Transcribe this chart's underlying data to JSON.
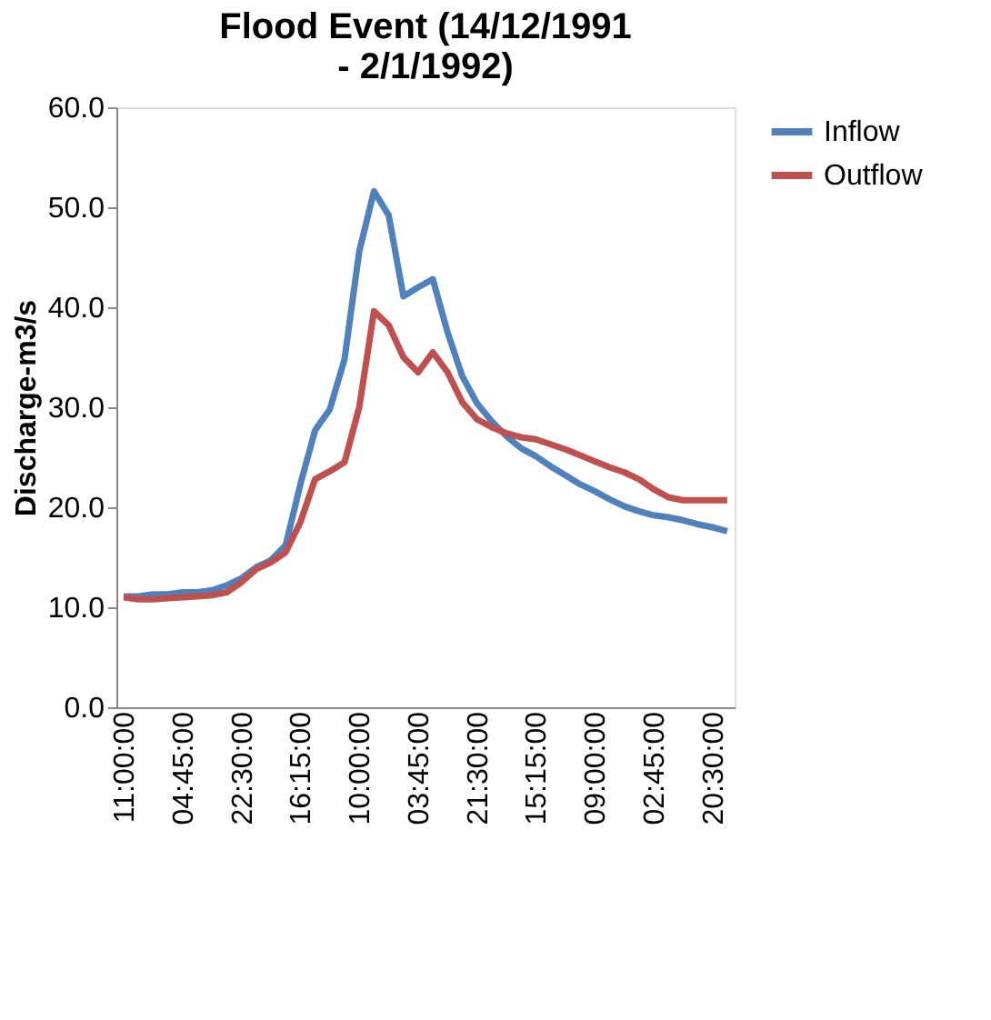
{
  "chart_data": {
    "type": "line",
    "title": "Flood Event (14/12/1991 - 2/1/1992)",
    "ylabel": "Discharge-m3/s",
    "categories": [
      "11:00:00",
      null,
      null,
      null,
      "04:45:00",
      null,
      null,
      null,
      "22:30:00",
      null,
      null,
      null,
      "16:15:00",
      null,
      null,
      null,
      "10:00:00",
      null,
      null,
      null,
      "03:45:00",
      null,
      null,
      null,
      "21:30:00",
      null,
      null,
      null,
      "15:15:00",
      null,
      null,
      null,
      "09:00:00",
      null,
      null,
      null,
      "02:45:00",
      null,
      null,
      null,
      "20:30:00",
      null
    ],
    "series": [
      {
        "name": "Inflow",
        "color": "#4f81bd",
        "values": [
          11.1,
          11.1,
          11.3,
          11.3,
          11.5,
          11.5,
          11.7,
          12.2,
          12.9,
          14.0,
          14.7,
          16.2,
          22.3,
          27.7,
          29.8,
          34.8,
          45.6,
          51.6,
          49.2,
          41.1,
          42.0,
          42.8,
          37.5,
          33.1,
          30.4,
          28.6,
          27.1,
          25.9,
          25.1,
          24.1,
          23.2,
          22.3,
          21.6,
          20.8,
          20.1,
          19.6,
          19.2,
          19.0,
          18.7,
          18.3,
          18.0,
          17.6
        ]
      },
      {
        "name": "Outflow",
        "color": "#c0504d",
        "values": [
          11.0,
          10.8,
          10.8,
          10.9,
          11.0,
          11.1,
          11.2,
          11.5,
          12.5,
          13.8,
          14.5,
          15.5,
          18.5,
          22.8,
          23.6,
          24.5,
          30.0,
          39.6,
          38.2,
          35.0,
          33.5,
          35.5,
          33.5,
          30.5,
          28.8,
          28.0,
          27.4,
          27.0,
          26.8,
          26.3,
          25.8,
          25.2,
          24.6,
          24.0,
          23.5,
          22.8,
          21.8,
          21.0,
          20.7,
          20.7,
          20.7,
          20.7
        ]
      }
    ],
    "ylim": [
      0,
      60
    ],
    "yticks": [
      {
        "value": 0,
        "label": "0.0"
      },
      {
        "value": 10,
        "label": "10.0"
      },
      {
        "value": 20,
        "label": "20.0"
      },
      {
        "value": 30,
        "label": "30.0"
      },
      {
        "value": 40,
        "label": "40.0"
      },
      {
        "value": 50,
        "label": "50.0"
      },
      {
        "value": 60,
        "label": "60.0"
      }
    ],
    "grid": false,
    "legend": "right",
    "marker": "none",
    "line_style": "solid"
  }
}
